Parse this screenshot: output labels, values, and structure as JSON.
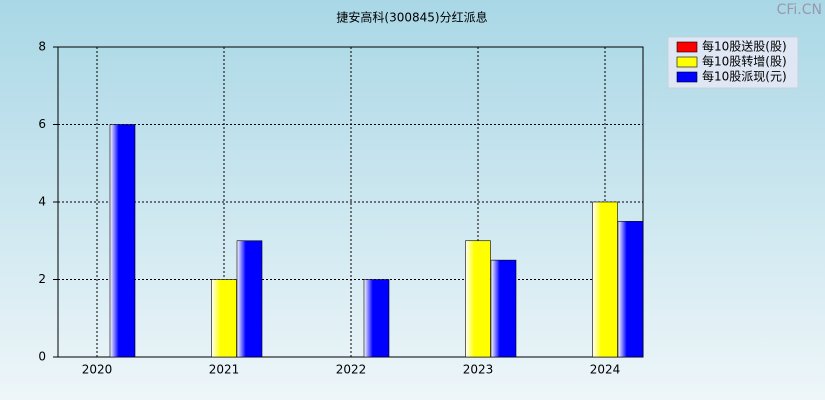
{
  "chart_data": {
    "type": "bar",
    "title": "捷安高科(300845)分红派息",
    "watermark": "CFi.CN",
    "categories": [
      "2020",
      "2021",
      "2022",
      "2023",
      "2024"
    ],
    "series": [
      {
        "name": "每10股送股(股)",
        "color": "#ff0000",
        "values": [
          0,
          0,
          0,
          0,
          0
        ]
      },
      {
        "name": "每10股转增(股)",
        "color": "#ffff00",
        "values": [
          0,
          2,
          0,
          3,
          4
        ]
      },
      {
        "name": "每10股派现(元)",
        "color": "#0000ff",
        "values": [
          6,
          3,
          2,
          2.5,
          3.5
        ]
      }
    ],
    "ylim": [
      0,
      8
    ],
    "yticks": [
      0,
      2,
      4,
      6,
      8
    ],
    "grid": true,
    "legend": "top-right"
  }
}
